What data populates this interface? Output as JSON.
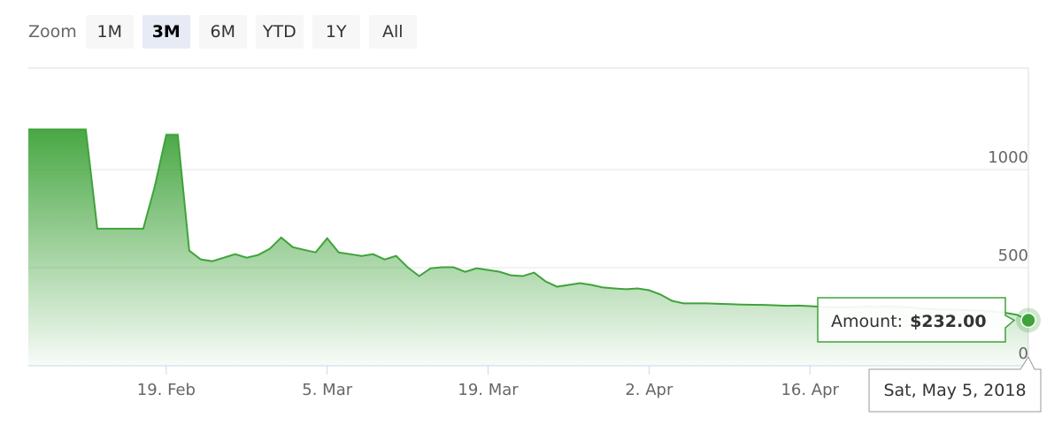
{
  "zoom": {
    "label": "Zoom",
    "buttons": [
      "1M",
      "3M",
      "6M",
      "YTD",
      "1Y",
      "All"
    ],
    "selected": "3M"
  },
  "chart_data": {
    "type": "area",
    "x": [
      "2018-02-07",
      "2018-02-08",
      "2018-02-09",
      "2018-02-10",
      "2018-02-11",
      "2018-02-12",
      "2018-02-13",
      "2018-02-14",
      "2018-02-15",
      "2018-02-16",
      "2018-02-17",
      "2018-02-18",
      "2018-02-19",
      "2018-02-20",
      "2018-02-21",
      "2018-02-22",
      "2018-02-23",
      "2018-02-24",
      "2018-02-25",
      "2018-02-26",
      "2018-02-27",
      "2018-02-28",
      "2018-03-01",
      "2018-03-02",
      "2018-03-03",
      "2018-03-04",
      "2018-03-05",
      "2018-03-06",
      "2018-03-07",
      "2018-03-08",
      "2018-03-09",
      "2018-03-10",
      "2018-03-11",
      "2018-03-12",
      "2018-03-13",
      "2018-03-14",
      "2018-03-15",
      "2018-03-16",
      "2018-03-17",
      "2018-03-18",
      "2018-03-19",
      "2018-03-20",
      "2018-03-21",
      "2018-03-22",
      "2018-03-23",
      "2018-03-24",
      "2018-03-25",
      "2018-03-26",
      "2018-03-27",
      "2018-03-28",
      "2018-03-29",
      "2018-03-30",
      "2018-03-31",
      "2018-04-01",
      "2018-04-02",
      "2018-04-03",
      "2018-04-04",
      "2018-04-05",
      "2018-04-06",
      "2018-04-07",
      "2018-04-08",
      "2018-04-09",
      "2018-04-10",
      "2018-04-11",
      "2018-04-12",
      "2018-04-13",
      "2018-04-14",
      "2018-04-15",
      "2018-04-16",
      "2018-04-17",
      "2018-04-18",
      "2018-04-19",
      "2018-04-20",
      "2018-04-21",
      "2018-04-22",
      "2018-04-23",
      "2018-04-24",
      "2018-04-25",
      "2018-04-26",
      "2018-04-27",
      "2018-04-28",
      "2018-04-29",
      "2018-04-30",
      "2018-05-01",
      "2018-05-02",
      "2018-05-03",
      "2018-05-04",
      "2018-05-05"
    ],
    "values": [
      1205,
      1205,
      1205,
      1205,
      1205,
      1205,
      699,
      699,
      699,
      699,
      699,
      914,
      1178,
      1178,
      587,
      542,
      533,
      551,
      569,
      551,
      565,
      596,
      654,
      605,
      591,
      578,
      650,
      578,
      569,
      560,
      569,
      542,
      560,
      502,
      457,
      497,
      502,
      502,
      479,
      497,
      488,
      479,
      461,
      457,
      475,
      430,
      403,
      412,
      421,
      412,
      399,
      394,
      390,
      394,
      385,
      363,
      331,
      318,
      318,
      318,
      316,
      314,
      312,
      311,
      310,
      308,
      306,
      307,
      304,
      300,
      298,
      298,
      300,
      302,
      300,
      304,
      300,
      297,
      290,
      288,
      287,
      285,
      283,
      280,
      276,
      270,
      260,
      232
    ],
    "color": "#3fa33a",
    "xlim": [
      "2018-02-07",
      "2018-05-05"
    ],
    "xticks": [
      {
        "value": "2018-02-19",
        "label": "19. Feb"
      },
      {
        "value": "2018-03-05",
        "label": "5. Mar"
      },
      {
        "value": "2018-03-19",
        "label": "19. Mar"
      },
      {
        "value": "2018-04-02",
        "label": "2. Apr"
      },
      {
        "value": "2018-04-16",
        "label": "16. Apr"
      }
    ],
    "ylim": [
      0,
      1518
    ],
    "yticks": [
      0,
      500,
      1000
    ],
    "grid": true,
    "tooltip": {
      "series_label": "Amount:",
      "value_label": "$232.00",
      "date_label": "Sat, May 5, 2018"
    }
  }
}
